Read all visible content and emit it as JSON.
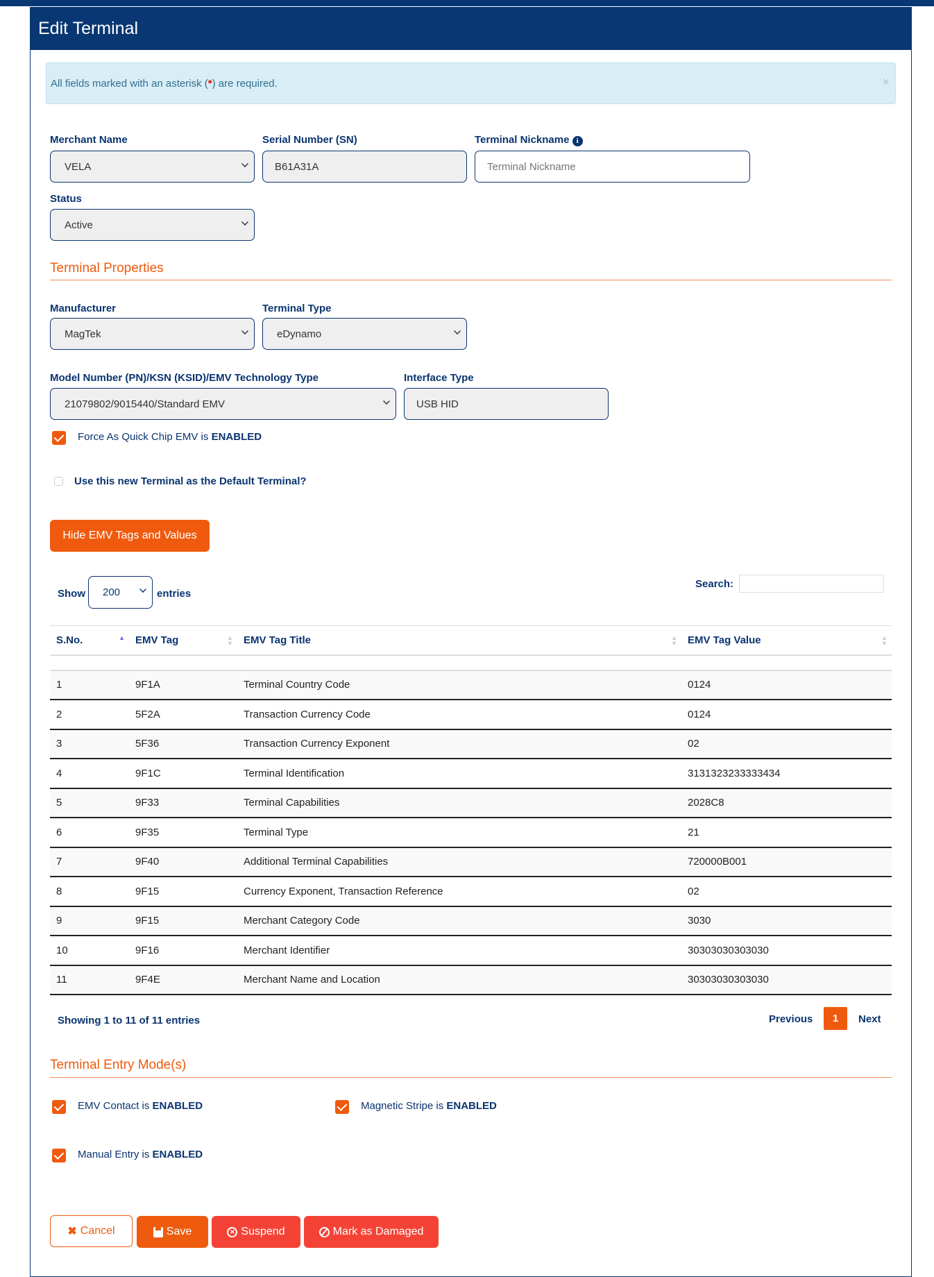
{
  "header": {
    "title": "Edit Terminal"
  },
  "alert": {
    "text_before": "All fields marked with an asterisk (",
    "star": "*",
    "text_after": ") are required.",
    "close": "×"
  },
  "form": {
    "merchant": {
      "label": "Merchant Name",
      "value": "VELA"
    },
    "serial": {
      "label": "Serial Number (SN)",
      "value": "B61A31A"
    },
    "nickname": {
      "label": "Terminal Nickname",
      "placeholder": "Terminal Nickname",
      "icon": "info-circle-icon"
    },
    "status": {
      "label": "Status",
      "value": "Active"
    }
  },
  "properties": {
    "heading": "Terminal Properties",
    "manufacturer": {
      "label": "Manufacturer",
      "value": "MagTek"
    },
    "terminal_type": {
      "label": "Terminal Type",
      "value": "eDynamo"
    },
    "model": {
      "label": "Model Number (PN)/KSN (KSID)/EMV Technology Type",
      "value": "21079802/9015440/Standard EMV"
    },
    "interface": {
      "label": "Interface Type",
      "value": "USB HID"
    },
    "force_quick_chip": {
      "text": "Force As Quick Chip EMV is ",
      "state": "ENABLED",
      "checked": true
    },
    "default_terminal": {
      "text": "Use this new Terminal as the Default Terminal?",
      "checked": false
    },
    "toggle_button": "Hide EMV Tags and Values"
  },
  "table": {
    "show_label": "Show",
    "entries_value": "200",
    "entries_label": "entries",
    "search_label": "Search:",
    "columns": [
      "S.No.",
      "EMV Tag",
      "EMV Tag Title",
      "EMV Tag Value"
    ],
    "rows": [
      [
        "1",
        "9F1A",
        "Terminal Country Code",
        "0124"
      ],
      [
        "2",
        "5F2A",
        "Transaction Currency Code",
        "0124"
      ],
      [
        "3",
        "5F36",
        "Transaction Currency Exponent",
        "02"
      ],
      [
        "4",
        "9F1C",
        "Terminal Identification",
        "3131323233333434"
      ],
      [
        "5",
        "9F33",
        "Terminal Capabilities",
        "2028C8"
      ],
      [
        "6",
        "9F35",
        "Terminal Type",
        "21"
      ],
      [
        "7",
        "9F40",
        "Additional Terminal Capabilities",
        "720000B001"
      ],
      [
        "8",
        "9F15",
        "Currency Exponent, Transaction Reference",
        "02"
      ],
      [
        "9",
        "9F15",
        "Merchant Category Code",
        "3030"
      ],
      [
        "10",
        "9F16",
        "Merchant Identifier",
        "30303030303030"
      ],
      [
        "11",
        "9F4E",
        "Merchant Name and Location",
        "30303030303030"
      ]
    ],
    "info": "Showing 1 to 11 of 11 entries",
    "prev": "Previous",
    "page": "1",
    "next": "Next"
  },
  "entry_modes": {
    "heading": "Terminal Entry Mode(s)",
    "emv_contact": {
      "text": "EMV Contact is ",
      "state": "ENABLED",
      "checked": true
    },
    "magstripe": {
      "text": "Magnetic Stripe is ",
      "state": "ENABLED",
      "checked": true
    },
    "manual": {
      "text": "Manual Entry is ",
      "state": "ENABLED",
      "checked": true
    }
  },
  "actions": {
    "cancel": "Cancel",
    "save": "Save",
    "suspend": "Suspend",
    "damaged": "Mark as Damaged"
  },
  "colors": {
    "primary": "#083773",
    "accent": "#f05a0e",
    "danger": "#f44336"
  }
}
